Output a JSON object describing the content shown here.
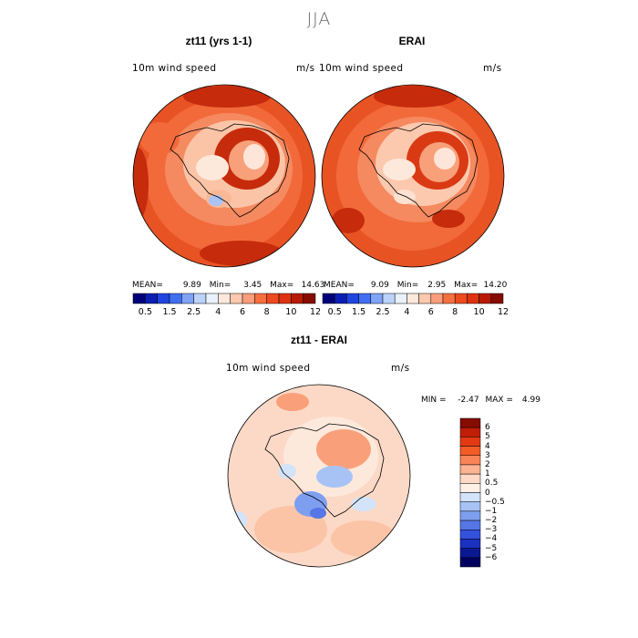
{
  "season": "JJA",
  "panels": {
    "left": {
      "title": "zt11 (yrs 1-1)",
      "variable": "10m wind speed",
      "units": "m/s",
      "stats": {
        "mean_label": "MEAN=",
        "mean": "9.89",
        "min_label": "Min=",
        "min": "3.45",
        "max_label": "Max=",
        "max": "14.63"
      }
    },
    "right": {
      "title": "ERAI",
      "variable": "10m wind speed",
      "units": "m/s",
      "stats": {
        "mean_label": "MEAN=",
        "mean": "9.09",
        "min_label": "Min=",
        "min": "2.95",
        "max_label": "Max=",
        "max": "14.20"
      }
    },
    "diff": {
      "title": "zt11 - ERAI",
      "variable": "10m wind speed",
      "units": "m/s",
      "stats": {
        "min_label": "MIN =",
        "min": "-2.47",
        "max_label": "MAX =",
        "max": "4.99"
      }
    }
  },
  "colorbar_wind": {
    "colors": [
      "#00007a",
      "#0a1fb2",
      "#1f45e0",
      "#3f6ff2",
      "#7fa3f7",
      "#bcd2fb",
      "#e9f1fc",
      "#fde9dc",
      "#fcc9ae",
      "#f99d7a",
      "#f6703f",
      "#ee4a1f",
      "#de3210",
      "#b81a05",
      "#860b00"
    ],
    "labels": [
      "0.5",
      "1.5",
      "2.5",
      "4",
      "6",
      "8",
      "10",
      "12"
    ]
  },
  "colorbar_diff": {
    "colors": [
      "#860b00",
      "#c01e06",
      "#e33a14",
      "#f45b26",
      "#fa8457",
      "#fcb392",
      "#fed9c5",
      "#fff0e6",
      "#d3e3f9",
      "#a7c3f5",
      "#7e9fef",
      "#5676e6",
      "#3451dc",
      "#1a31c1",
      "#0a1894",
      "#00005e"
    ],
    "labels": [
      "6",
      "5",
      "4",
      "3",
      "2",
      "1",
      "0.5",
      "0",
      "−0.5",
      "−1",
      "−2",
      "−3",
      "−4",
      "−5",
      "−6"
    ]
  }
}
